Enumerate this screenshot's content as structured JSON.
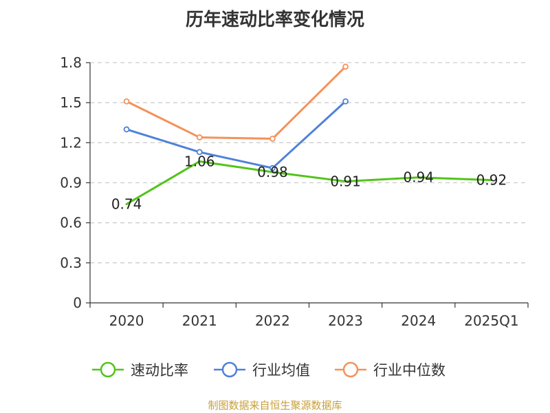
{
  "chart_data": {
    "type": "line",
    "title": "历年速动比率变化情况",
    "categories": [
      "2020",
      "2021",
      "2022",
      "2023",
      "2024",
      "2025Q1"
    ],
    "ylim": [
      0,
      1.8
    ],
    "yticks": [
      "0",
      "0.3",
      "0.6",
      "0.9",
      "1.2",
      "1.5",
      "1.8"
    ],
    "ytick_values": [
      0,
      0.3,
      0.6,
      0.9,
      1.2,
      1.5,
      1.8
    ],
    "grid": true,
    "legend_position": "bottom-center",
    "series": [
      {
        "name": "速动比率",
        "color": "#52c41a",
        "values": [
          0.74,
          1.06,
          0.98,
          0.91,
          0.94,
          0.92
        ],
        "labels": [
          "0.74",
          "1.06",
          "0.98",
          "0.91",
          "0.94",
          "0.92"
        ],
        "show_labels": true,
        "show_markers": false
      },
      {
        "name": "行业均值",
        "color": "#4f81d9",
        "values": [
          1.3,
          1.13,
          1.01,
          1.51,
          null,
          null
        ],
        "show_labels": false,
        "show_markers": true
      },
      {
        "name": "行业中位数",
        "color": "#f5915a",
        "values": [
          1.51,
          1.24,
          1.23,
          1.77,
          null,
          null
        ],
        "show_labels": false,
        "show_markers": true
      }
    ]
  },
  "source": {
    "text": "制图数据来自恒生聚源数据库",
    "color": "#c8a03a"
  }
}
